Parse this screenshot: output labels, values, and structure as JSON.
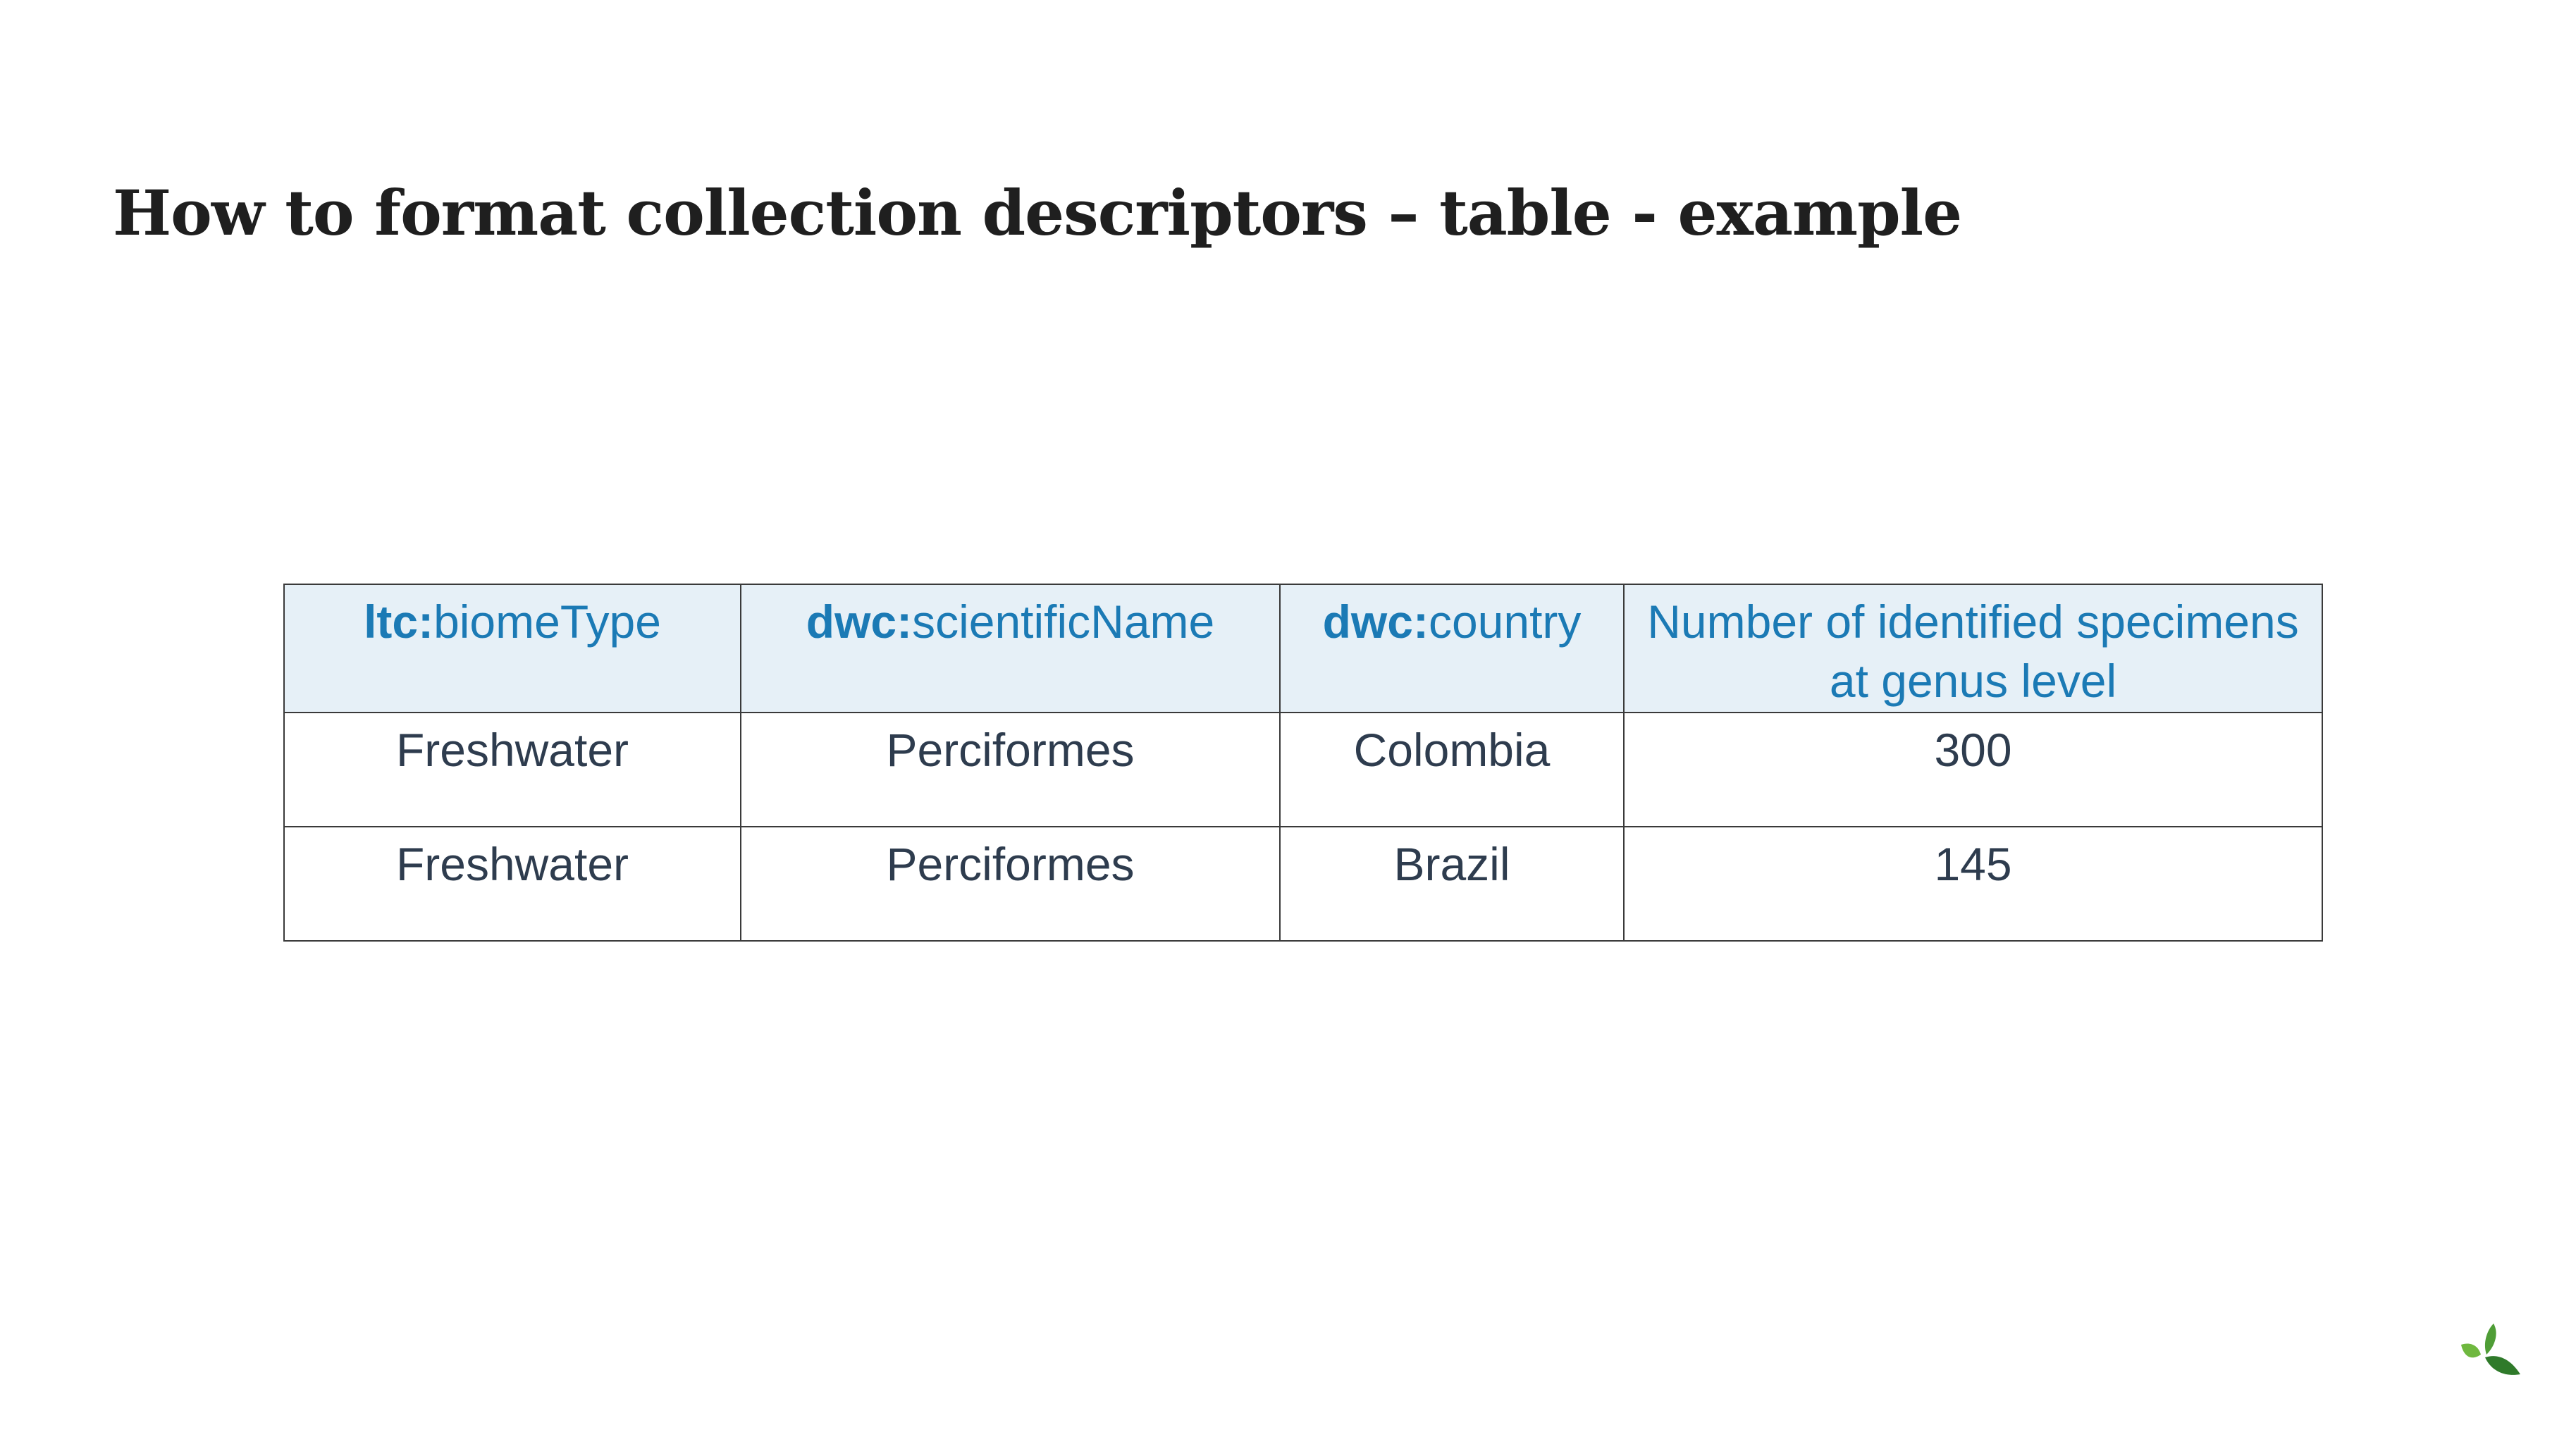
{
  "slide": {
    "title": "How to format collection descriptors – table - example"
  },
  "table": {
    "headers": [
      {
        "prefix": "ltc:",
        "term": "biomeType"
      },
      {
        "prefix": "dwc:",
        "term": "scientificName"
      },
      {
        "prefix": "dwc:",
        "term": "country"
      },
      {
        "prefix": "",
        "term": "Number of identified specimens at genus level"
      }
    ],
    "rows": [
      [
        "Freshwater",
        "Perciformes",
        "Colombia",
        "300"
      ],
      [
        "Freshwater",
        "Perciformes",
        "Brazil",
        "145"
      ]
    ]
  },
  "logo": {
    "icon": "leaf-icon",
    "color_light": "#6fb83f",
    "color_dark": "#2f7a2a"
  },
  "colors": {
    "header_text": "#1b7ab5",
    "header_background": "#e6f0f7",
    "body_text": "#2e3c4e",
    "title_text": "#1f1f1f"
  }
}
